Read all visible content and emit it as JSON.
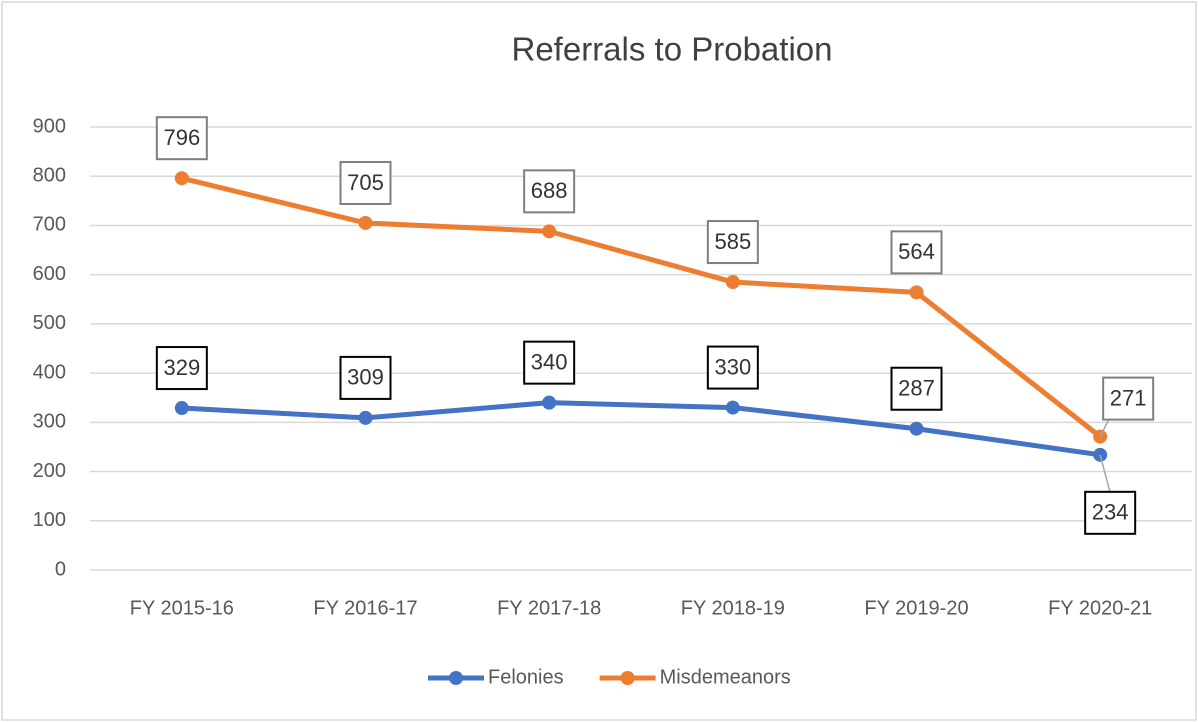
{
  "chart_data": {
    "type": "line",
    "title": "Referrals to Probation",
    "categories": [
      "FY 2015-16",
      "FY 2016-17",
      "FY 2017-18",
      "FY 2018-19",
      "FY 2019-20",
      "FY 2020-21"
    ],
    "series": [
      {
        "name": "Felonies",
        "color": "#4472c4",
        "values": [
          329,
          309,
          340,
          330,
          287,
          234
        ]
      },
      {
        "name": "Misdemeanors",
        "color": "#ed7d31",
        "values": [
          796,
          705,
          688,
          585,
          564,
          271
        ]
      }
    ],
    "ylim": [
      0,
      900
    ],
    "yticks": [
      0,
      100,
      200,
      300,
      400,
      500,
      600,
      700,
      800,
      900
    ],
    "grid": true,
    "legend": "bottom"
  }
}
